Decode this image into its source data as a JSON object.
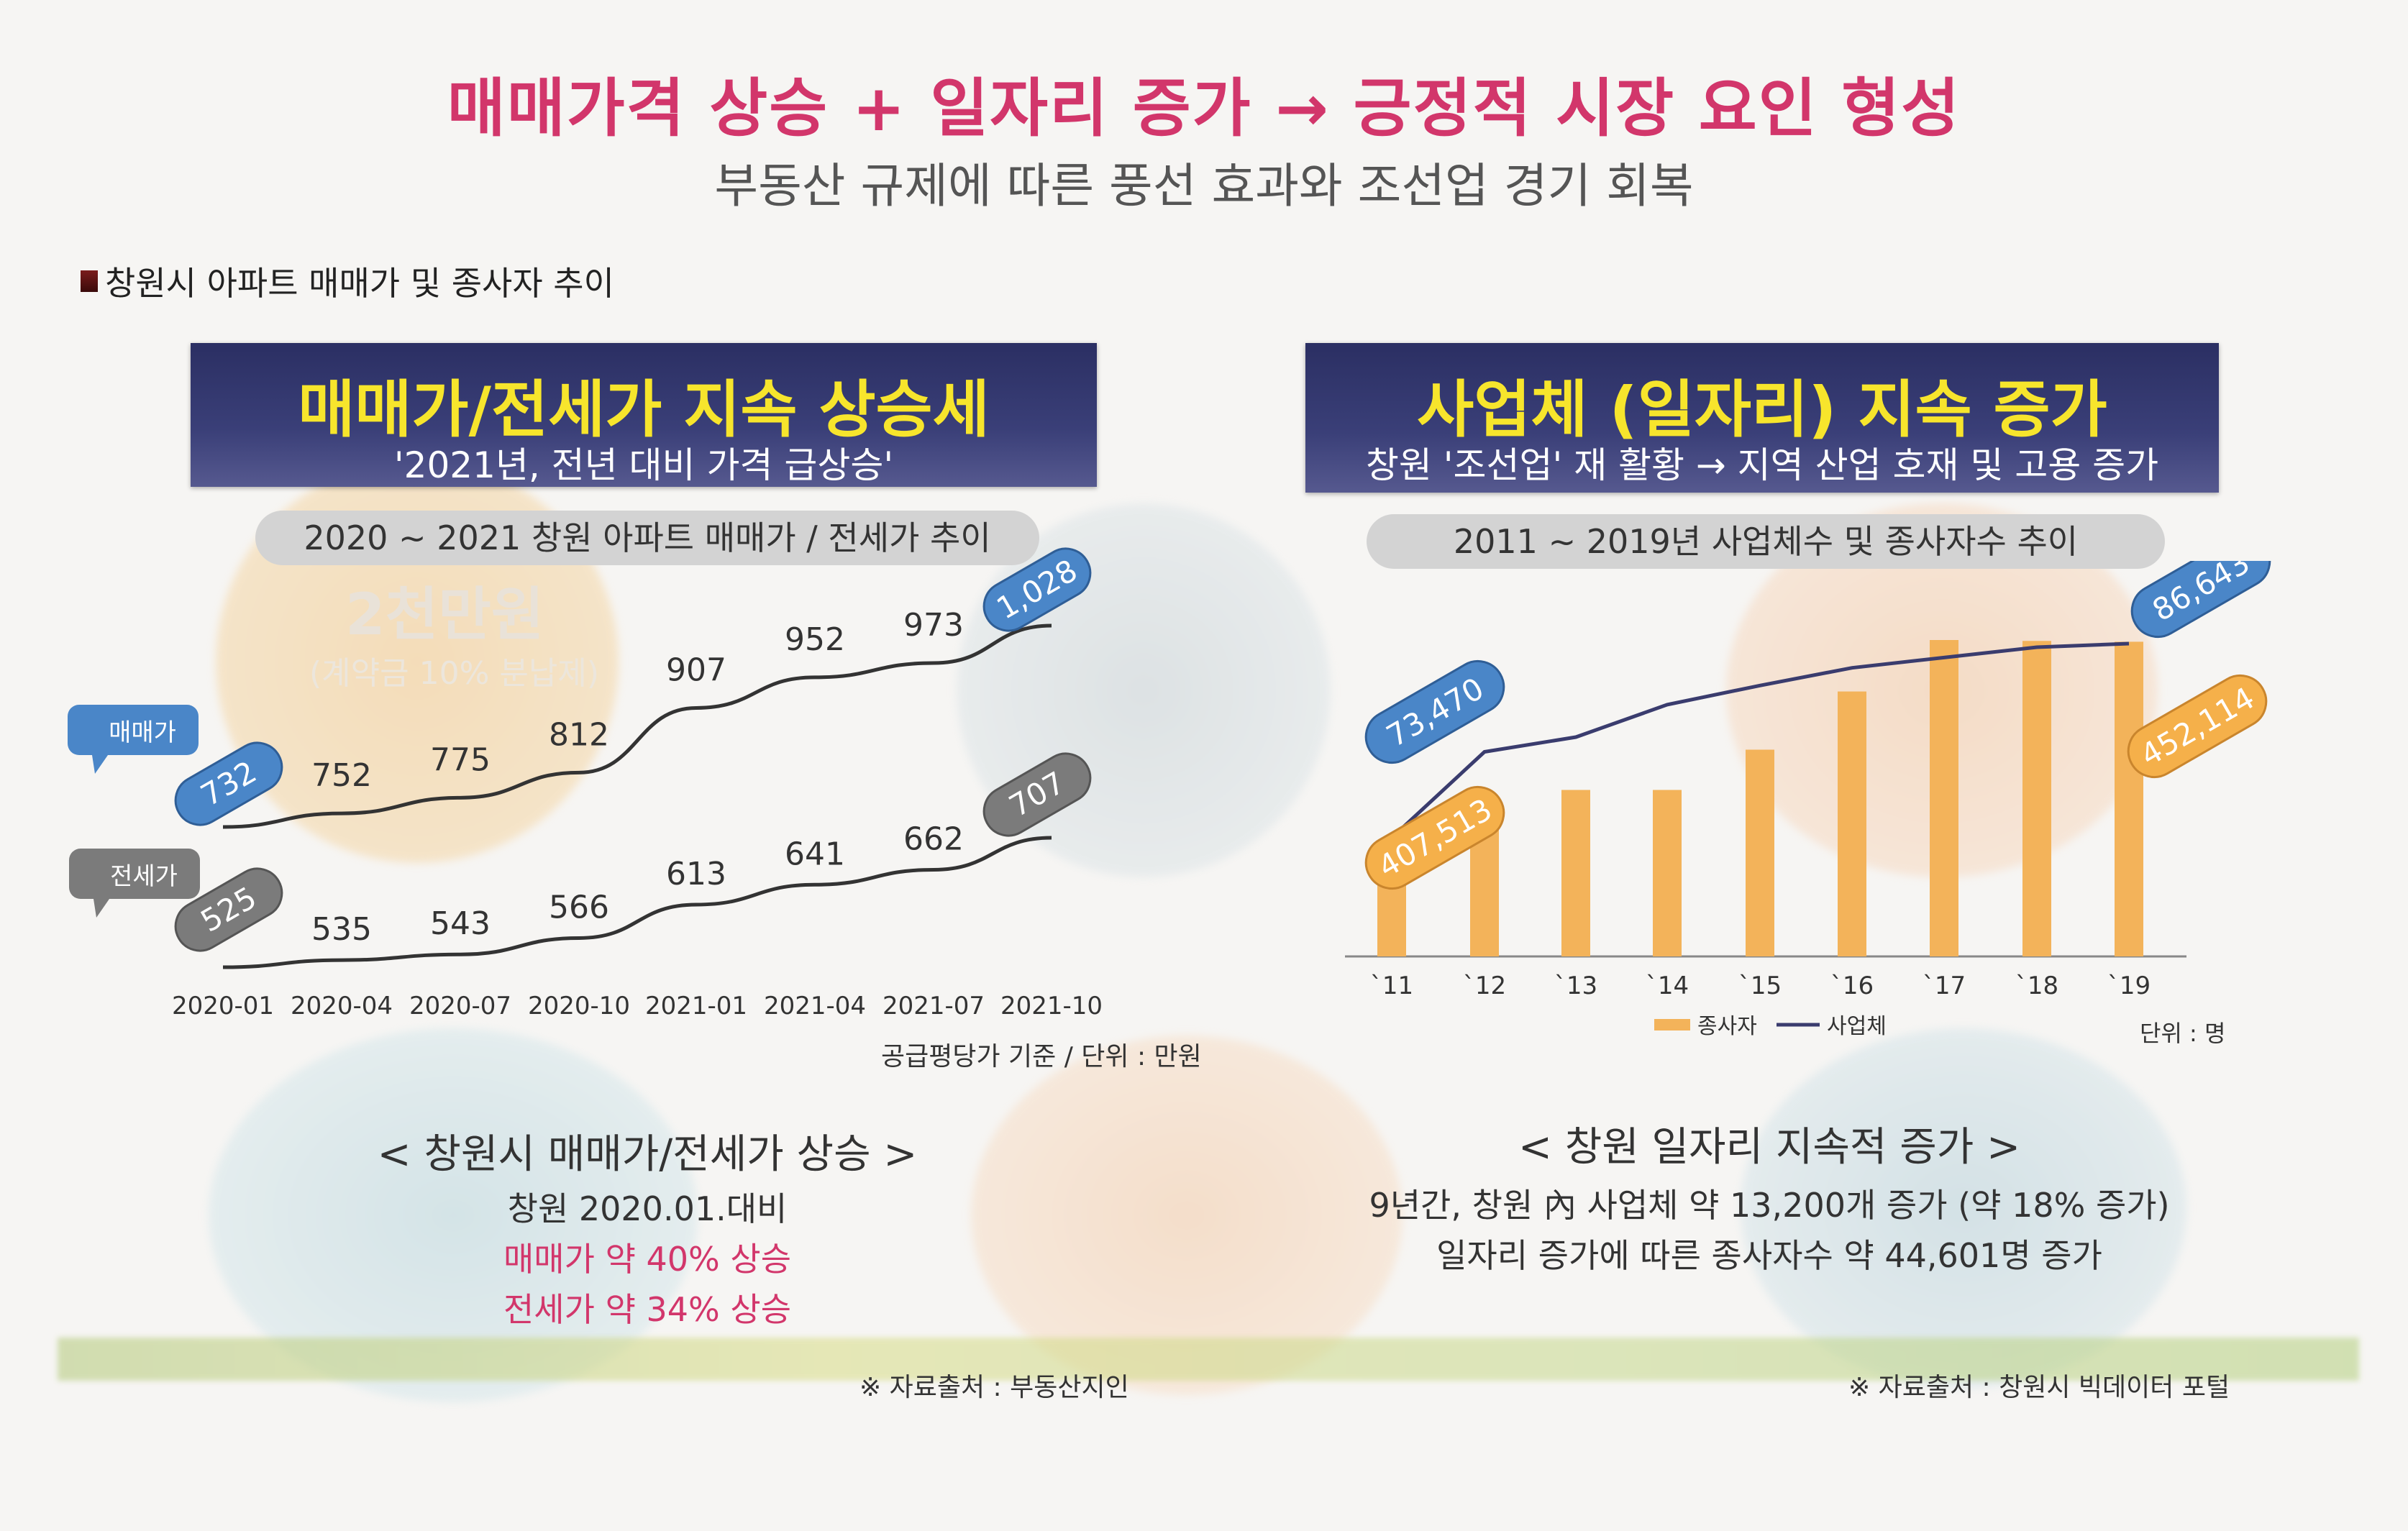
{
  "header": {
    "title": "매매가격 상승 + 일자리 증가 → 긍정적 시장 요인 형성",
    "subtitle": "부동산 규제에 따른 풍선 효과와 조선업 경기 회복",
    "section_label": "창원시 아파트 매매가 및 종사자 추이"
  },
  "left": {
    "banner_title": "매매가/전세가 지속 상승세",
    "banner_subtitle": "'2021년, 전년 대비 가격 급상승'",
    "chart_title": "2020 ~ 2021 창원 아파트 매매가 / 전세가 추이",
    "unit_note": "공급평당가 기준 / 단위 : 만원",
    "caption_title": "< 창원시 매매가/전세가 상승 >",
    "caption_line1": "창원 2020.01.대비",
    "caption_line2": "매매가 약 40% 상승",
    "caption_line3": "전세가 약 34% 상승",
    "source": "※ 자료출처 : 부동산지인",
    "bg_text1": "2천만원",
    "bg_text2": "(계약금 10% 분납제)"
  },
  "right": {
    "banner_title": "사업체 (일자리) 지속 증가",
    "banner_subtitle": "창원 '조선업' 재 활황 → 지역 산업 호재 및 고용 증가",
    "chart_title": "2011 ~ 2019년 사업체수 및 종사자수 추이",
    "unit_note": "단위 : 명",
    "caption_title": "< 창원 일자리 지속적 증가 >",
    "caption_line1": "9년간, 창원 內 사업체 약 13,200개 증가 (약 18% 증가)",
    "caption_line2": "일자리 증가에 따른 종사자수 약 44,601명 증가",
    "source": "※ 자료출처 : 창원시 빅데이터 포털"
  },
  "colors": {
    "headline": "#d2366b",
    "banner": "#2b2f63",
    "banner_title": "#f7e52c",
    "sale_badge": "#4a86c8",
    "jeonse_badge": "#7b7b7b",
    "bar": "#f3b35a",
    "bar_badge": "#f5b04a",
    "line": "#333333",
    "business_line": "#3a3c6e"
  },
  "chart_data": [
    {
      "type": "line",
      "title": "2020 ~ 2021 창원 아파트 매매가 / 전세가 추이",
      "categories": [
        "2020-01",
        "2020-04",
        "2020-07",
        "2020-10",
        "2021-01",
        "2021-04",
        "2021-07",
        "2021-10"
      ],
      "series": [
        {
          "name": "매매가",
          "values": [
            732,
            752,
            775,
            812,
            907,
            952,
            973,
            1028
          ],
          "labels": [
            "732",
            "752",
            "775",
            "812",
            "907",
            "952",
            "973",
            "1,028"
          ]
        },
        {
          "name": "전세가",
          "values": [
            525,
            535,
            543,
            566,
            613,
            641,
            662,
            707
          ],
          "labels": [
            "525",
            "535",
            "543",
            "566",
            "613",
            "641",
            "662",
            "707"
          ]
        }
      ],
      "unit": "공급평당가 기준 / 단위 : 만원"
    },
    {
      "type": "bar",
      "title": "2011 ~ 2019년 사업체수 및 종사자수 추이",
      "categories": [
        "`11",
        "`12",
        "`13",
        "`14",
        "`15",
        "`16",
        "`17",
        "`18",
        "`19"
      ],
      "series": [
        {
          "name": "종사자",
          "type": "bar",
          "values": [
            407513,
            412000,
            419000,
            419000,
            428000,
            441000,
            452500,
            452300,
            452114
          ],
          "first_label": "407,513",
          "last_label": "452,114"
        },
        {
          "name": "사업체",
          "type": "line",
          "values": [
            73470,
            79300,
            80300,
            82500,
            83800,
            85000,
            85700,
            86400,
            86643
          ],
          "first_label": "73,470",
          "last_label": "86,643"
        }
      ],
      "legend": [
        "종사자",
        "사업체"
      ],
      "legend_position": "bottom",
      "unit": "단위 : 명"
    }
  ]
}
